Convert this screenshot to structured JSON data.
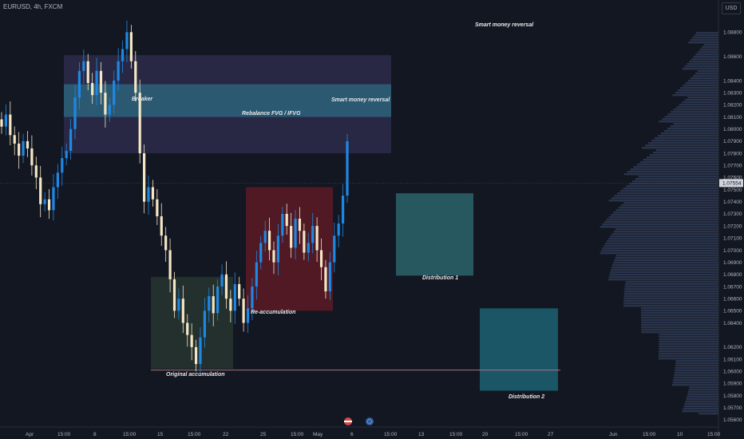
{
  "header": {
    "symbol": "EURUSD, 4h, FXCM",
    "currency": "USD"
  },
  "colors": {
    "background": "#131722",
    "up_candle": "#1e88e5",
    "down_candle": "#f5e6c4",
    "zone_purple": "#3a3660",
    "zone_teal": "#2d6e86",
    "accumulation": "#26332f",
    "reaccumulation": "#5c1a24",
    "distribution_1": "#2a5e66",
    "distribution_2": "#1b5a6b",
    "profile": "#3c4a6b"
  },
  "chart_data": {
    "type": "candlestick",
    "title": "",
    "xlabel": "",
    "ylabel": "",
    "ylim": [
      1.0556,
      1.0896
    ],
    "y_ticks": [
      "1.08800",
      "1.08600",
      "1.08400",
      "1.08300",
      "1.08200",
      "1.08100",
      "1.08000",
      "1.07900",
      "1.07800",
      "1.07700",
      "1.07600",
      "1.07500",
      "1.07400",
      "1.07300",
      "1.07200",
      "1.07100",
      "1.07000",
      "1.06900",
      "1.06800",
      "1.06700",
      "1.06600",
      "1.06500",
      "1.06400",
      "1.06200",
      "1.06100",
      "1.06000",
      "1.05900",
      "1.05800",
      "1.05700",
      "1.05600"
    ],
    "x_ticks": [
      "Apr",
      "15:00",
      "8",
      "15:00",
      "15",
      "15:00",
      "22",
      "25",
      "15:00",
      "May",
      "6",
      "15:00",
      "13",
      "15:00",
      "20",
      "15:00",
      "27",
      "Jun",
      "15:00",
      "10",
      "15:00"
    ],
    "current_price": "1.07554",
    "grid": false,
    "candles_close": [
      1.0802,
      1.0812,
      1.0795,
      1.0788,
      1.0778,
      1.079,
      1.0784,
      1.077,
      1.076,
      1.0738,
      1.0742,
      1.0733,
      1.0752,
      1.0764,
      1.0776,
      1.0782,
      1.08,
      1.0826,
      1.0848,
      1.0856,
      1.0838,
      1.0828,
      1.0848,
      1.083,
      1.0812,
      1.082,
      1.084,
      1.0856,
      1.0866,
      1.088,
      1.0856,
      1.083,
      1.078,
      1.074,
      1.0752,
      1.0742,
      1.0728,
      1.0712,
      1.07,
      1.0676,
      1.065,
      1.066,
      1.064,
      1.063,
      1.062,
      1.0606,
      1.0628,
      1.065,
      1.0662,
      1.0648,
      1.067,
      1.068,
      1.066,
      1.065,
      1.0672,
      1.066,
      1.064,
      1.0652,
      1.067,
      1.069,
      1.0706,
      1.0716,
      1.07,
      1.069,
      1.0712,
      1.073,
      1.072,
      1.0702,
      1.0726,
      1.0716,
      1.0698,
      1.0706,
      1.072,
      1.07,
      1.0686,
      1.0666,
      1.069,
      1.0712,
      1.0722,
      1.0745,
      1.079
    ],
    "zones": [
      {
        "label": "Rebalance FVG / IFVG",
        "from": 1.078,
        "to": 1.0861
      },
      {
        "label": "Breaker",
        "from": 1.081,
        "to": 1.0837
      },
      {
        "label": "Original accumulation",
        "from": 1.0602,
        "to": 1.0678
      },
      {
        "label": "Re-accumulation",
        "from": 1.065,
        "to": 1.0752
      },
      {
        "label": "Distribution 1",
        "from": 1.0679,
        "to": 1.0747
      },
      {
        "label": "Distribution 2",
        "from": 1.0584,
        "to": 1.0652
      }
    ],
    "annotations": [
      "Smart money reversal",
      "Smart money reversal",
      "Breaker",
      "Rebalance FVG / IFVG",
      "Original accumulation",
      "Re-accumulation",
      "Distribution 1",
      "Distribution 2"
    ],
    "horizontal_line": 1.0601
  }
}
